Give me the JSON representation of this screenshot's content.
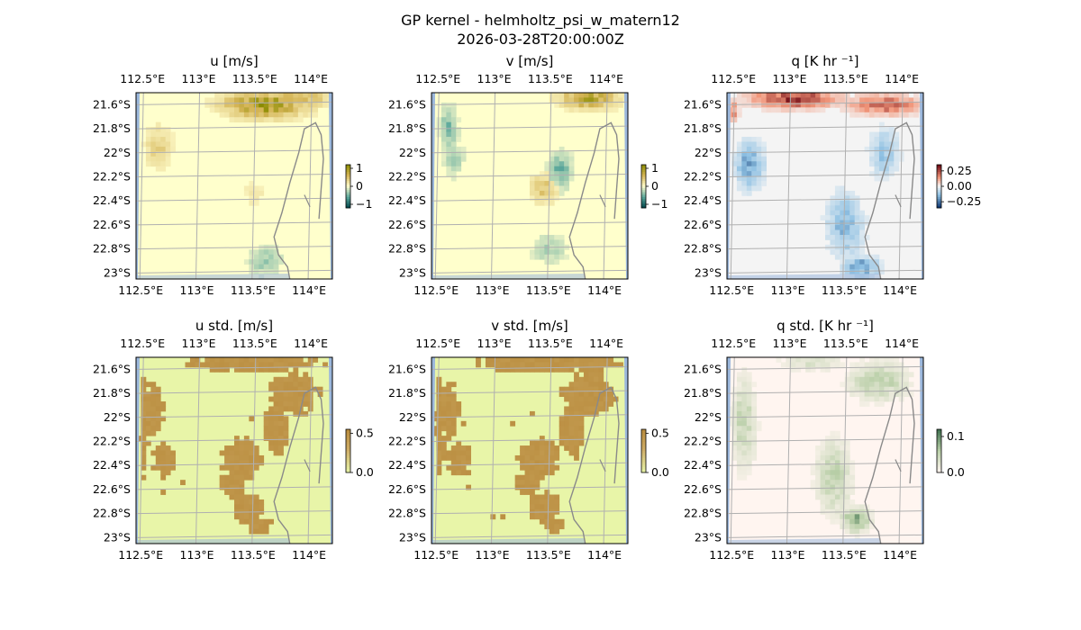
{
  "figure": {
    "title_line1": "GP kernel - helmholtz_psi_w_matern12",
    "title_line2": "2026-03-28T20:00:00Z"
  },
  "chart_data": [
    {
      "type": "heatmap",
      "title": "u [m/s]",
      "x_ticks": [
        "112.5°E",
        "113°E",
        "113.5°E",
        "114°E"
      ],
      "y_ticks": [
        "21.6°S",
        "21.8°S",
        "22°S",
        "22.2°S",
        "22.4°S",
        "22.6°S",
        "22.8°S",
        "23°S"
      ],
      "x_tick_values": [
        112.5,
        113.0,
        113.5,
        114.0
      ],
      "y_tick_values": [
        -21.6,
        -21.8,
        -22.0,
        -22.2,
        -22.4,
        -22.6,
        -22.8,
        -23.0
      ],
      "xlim": [
        112.45,
        114.2
      ],
      "ylim": [
        -23.05,
        -21.5
      ],
      "grid": true,
      "colorbar": {
        "ticks": [
          "1",
          "0",
          "−1"
        ],
        "tick_values": [
          1,
          0,
          -1
        ],
        "range": [
          -1.2,
          1.2
        ],
        "colormap": "BrBG"
      },
      "pattern": "u",
      "background_color": "#ffffcc"
    },
    {
      "type": "heatmap",
      "title": "v [m/s]",
      "x_ticks": [
        "112.5°E",
        "113°E",
        "113.5°E",
        "114°E"
      ],
      "y_ticks": [
        "21.6°S",
        "21.8°S",
        "22°S",
        "22.2°S",
        "22.4°S",
        "22.6°S",
        "22.8°S",
        "23°S"
      ],
      "x_tick_values": [
        112.5,
        113.0,
        113.5,
        114.0
      ],
      "y_tick_values": [
        -21.6,
        -21.8,
        -22.0,
        -22.2,
        -22.4,
        -22.6,
        -22.8,
        -23.0
      ],
      "xlim": [
        112.45,
        114.2
      ],
      "ylim": [
        -23.05,
        -21.5
      ],
      "grid": true,
      "colorbar": {
        "ticks": [
          "1",
          "0",
          "−1"
        ],
        "tick_values": [
          1,
          0,
          -1
        ],
        "range": [
          -1.2,
          1.2
        ],
        "colormap": "BrBG"
      },
      "pattern": "v",
      "background_color": "#ffffcc"
    },
    {
      "type": "heatmap",
      "title": "q [K hr ⁻¹]",
      "x_ticks": [
        "112.5°E",
        "113°E",
        "113.5°E",
        "114°E"
      ],
      "y_ticks": [
        "21.6°S",
        "21.8°S",
        "22°S",
        "22.2°S",
        "22.4°S",
        "22.6°S",
        "22.8°S",
        "23°S"
      ],
      "x_tick_values": [
        112.5,
        113.0,
        113.5,
        114.0
      ],
      "y_tick_values": [
        -21.6,
        -21.8,
        -22.0,
        -22.2,
        -22.4,
        -22.6,
        -22.8,
        -23.0
      ],
      "xlim": [
        112.45,
        114.2
      ],
      "ylim": [
        -23.05,
        -21.5
      ],
      "grid": true,
      "colorbar": {
        "ticks": [
          "0.25",
          "0.00",
          "−0.25"
        ],
        "tick_values": [
          0.25,
          0.0,
          -0.25
        ],
        "range": [
          -0.35,
          0.35
        ],
        "colormap": "RdBu_r"
      },
      "pattern": "q",
      "background_color": "#f4f4f4"
    },
    {
      "type": "heatmap",
      "title": "u std. [m/s]",
      "x_ticks": [
        "112.5°E",
        "113°E",
        "113.5°E",
        "114°E"
      ],
      "y_ticks": [
        "21.6°S",
        "21.8°S",
        "22°S",
        "22.2°S",
        "22.4°S",
        "22.6°S",
        "22.8°S",
        "23°S"
      ],
      "x_tick_values": [
        112.5,
        113.0,
        113.5,
        114.0
      ],
      "y_tick_values": [
        -21.6,
        -21.8,
        -22.0,
        -22.2,
        -22.4,
        -22.6,
        -22.8,
        -23.0
      ],
      "xlim": [
        112.45,
        114.2
      ],
      "ylim": [
        -23.05,
        -21.5
      ],
      "grid": true,
      "colorbar": {
        "ticks": [
          "0.5",
          "0.0"
        ],
        "tick_values": [
          0.5,
          0.0
        ],
        "range": [
          0,
          0.55
        ],
        "colormap": "std-brown"
      },
      "pattern": "std",
      "background_color": "#e8f5a8"
    },
    {
      "type": "heatmap",
      "title": "v std. [m/s]",
      "x_ticks": [
        "112.5°E",
        "113°E",
        "113.5°E",
        "114°E"
      ],
      "y_ticks": [
        "21.6°S",
        "21.8°S",
        "22°S",
        "22.2°S",
        "22.4°S",
        "22.6°S",
        "22.8°S",
        "23°S"
      ],
      "x_tick_values": [
        112.5,
        113.0,
        113.5,
        114.0
      ],
      "y_tick_values": [
        -21.6,
        -21.8,
        -22.0,
        -22.2,
        -22.4,
        -22.6,
        -22.8,
        -23.0
      ],
      "xlim": [
        112.45,
        114.2
      ],
      "ylim": [
        -23.05,
        -21.5
      ],
      "grid": true,
      "colorbar": {
        "ticks": [
          "0.5",
          "0.0"
        ],
        "tick_values": [
          0.5,
          0.0
        ],
        "range": [
          0,
          0.55
        ],
        "colormap": "std-brown"
      },
      "pattern": "std",
      "background_color": "#e8f5a8"
    },
    {
      "type": "heatmap",
      "title": "q std. [K hr ⁻¹]",
      "x_ticks": [
        "112.5°E",
        "113°E",
        "113.5°E",
        "114°E"
      ],
      "y_ticks": [
        "21.6°S",
        "21.8°S",
        "22°S",
        "22.2°S",
        "22.4°S",
        "22.6°S",
        "22.8°S",
        "23°S"
      ],
      "x_tick_values": [
        112.5,
        113.0,
        113.5,
        114.0
      ],
      "y_tick_values": [
        -21.6,
        -21.8,
        -22.0,
        -22.2,
        -22.4,
        -22.6,
        -22.8,
        -23.0
      ],
      "xlim": [
        112.45,
        114.2
      ],
      "ylim": [
        -23.05,
        -21.5
      ],
      "grid": true,
      "colorbar": {
        "ticks": [
          "0.1",
          "0.0"
        ],
        "tick_values": [
          0.1,
          0.0
        ],
        "range": [
          0,
          0.12
        ],
        "colormap": "std-green"
      },
      "pattern": "qstd",
      "background_color": "#fff5f0"
    }
  ],
  "colors": {
    "ocean_edge": "#9bb7dc",
    "coastline": "#8a8a8a",
    "gridline": "#b0b0b0"
  }
}
